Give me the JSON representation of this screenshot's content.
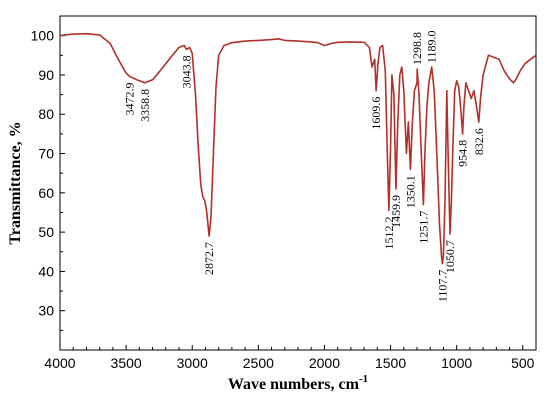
{
  "chart_data": {
    "type": "line",
    "title": "",
    "xlabel": "Wave numbers, cm",
    "xlabel_superscript": "-1",
    "ylabel": "Transmittance, %",
    "xlim": [
      4000,
      400
    ],
    "ylim": [
      20,
      105
    ],
    "x_reversed": true,
    "grid": false,
    "legend": "none",
    "x_ticks": [
      4000,
      3500,
      3000,
      2500,
      2000,
      1500,
      1000,
      500
    ],
    "y_ticks": [
      30,
      40,
      50,
      60,
      70,
      80,
      90,
      100
    ],
    "series": [
      {
        "color": "#b2302a",
        "points": [
          [
            4000,
            100.0
          ],
          [
            3900,
            100.4
          ],
          [
            3800,
            100.5
          ],
          [
            3700,
            100.2
          ],
          [
            3620,
            98.0
          ],
          [
            3560,
            94.0
          ],
          [
            3500,
            90.5
          ],
          [
            3472.9,
            89.6
          ],
          [
            3420,
            88.8
          ],
          [
            3358.8,
            88.0
          ],
          [
            3300,
            88.8
          ],
          [
            3220,
            92.0
          ],
          [
            3150,
            95.0
          ],
          [
            3100,
            97.0
          ],
          [
            3060,
            97.5
          ],
          [
            3043.8,
            96.5
          ],
          [
            3020,
            97.0
          ],
          [
            3000,
            95.5
          ],
          [
            2975,
            85.0
          ],
          [
            2955,
            72.0
          ],
          [
            2935,
            62.0
          ],
          [
            2920,
            59.0
          ],
          [
            2905,
            58.0
          ],
          [
            2890,
            55.0
          ],
          [
            2872.7,
            49.0
          ],
          [
            2858,
            54.0
          ],
          [
            2840,
            70.0
          ],
          [
            2820,
            87.0
          ],
          [
            2800,
            95.0
          ],
          [
            2760,
            97.5
          ],
          [
            2700,
            98.2
          ],
          [
            2600,
            98.6
          ],
          [
            2500,
            98.8
          ],
          [
            2400,
            99.0
          ],
          [
            2350,
            99.2
          ],
          [
            2300,
            98.8
          ],
          [
            2200,
            98.6
          ],
          [
            2100,
            98.4
          ],
          [
            2050,
            98.2
          ],
          [
            2000,
            97.5
          ],
          [
            1950,
            98.0
          ],
          [
            1900,
            98.3
          ],
          [
            1800,
            98.4
          ],
          [
            1700,
            98.3
          ],
          [
            1660,
            97.0
          ],
          [
            1640,
            92.0
          ],
          [
            1620,
            94.0
          ],
          [
            1609.6,
            86.0
          ],
          [
            1595,
            93.0
          ],
          [
            1580,
            97.0
          ],
          [
            1560,
            97.5
          ],
          [
            1540,
            91.0
          ],
          [
            1525,
            70.0
          ],
          [
            1512.2,
            55.5
          ],
          [
            1500,
            72.0
          ],
          [
            1490,
            90.0
          ],
          [
            1475,
            85.0
          ],
          [
            1459.9,
            61.0
          ],
          [
            1445,
            78.0
          ],
          [
            1430,
            90.0
          ],
          [
            1415,
            92.0
          ],
          [
            1400,
            86.0
          ],
          [
            1380,
            70.0
          ],
          [
            1365,
            78.0
          ],
          [
            1350.1,
            66.0
          ],
          [
            1335,
            78.0
          ],
          [
            1320,
            86.0
          ],
          [
            1300,
            88.0
          ],
          [
            1298.8,
            91.5
          ],
          [
            1285,
            85.0
          ],
          [
            1265,
            68.0
          ],
          [
            1251.7,
            57.0
          ],
          [
            1240,
            70.0
          ],
          [
            1225,
            82.0
          ],
          [
            1210,
            88.0
          ],
          [
            1189,
            92.0
          ],
          [
            1170,
            86.0
          ],
          [
            1150,
            70.0
          ],
          [
            1130,
            52.0
          ],
          [
            1115,
            44.0
          ],
          [
            1107.7,
            42.0
          ],
          [
            1100,
            44.0
          ],
          [
            1088,
            58.0
          ],
          [
            1075,
            86.0
          ],
          [
            1065,
            70.0
          ],
          [
            1050.7,
            49.5
          ],
          [
            1040,
            58.0
          ],
          [
            1030,
            70.0
          ],
          [
            1015,
            86.0
          ],
          [
            1000,
            88.5
          ],
          [
            985,
            87.0
          ],
          [
            970,
            82.0
          ],
          [
            954.8,
            75.0
          ],
          [
            945,
            82.0
          ],
          [
            930,
            88.0
          ],
          [
            910,
            86.0
          ],
          [
            890,
            84.0
          ],
          [
            870,
            86.0
          ],
          [
            850,
            82.0
          ],
          [
            832.6,
            78.0
          ],
          [
            820,
            84.0
          ],
          [
            800,
            90.0
          ],
          [
            760,
            95.0
          ],
          [
            720,
            94.5
          ],
          [
            680,
            94.0
          ],
          [
            640,
            91.0
          ],
          [
            600,
            89.0
          ],
          [
            570,
            88.0
          ],
          [
            550,
            89.0
          ],
          [
            520,
            91.0
          ],
          [
            480,
            93.0
          ],
          [
            440,
            94.0
          ],
          [
            400,
            95.0
          ]
        ]
      }
    ],
    "peak_labels": [
      {
        "text": "3472.9",
        "x": 3472.9,
        "y": 89.6
      },
      {
        "text": "3358.8",
        "x": 3358.8,
        "y": 88.0
      },
      {
        "text": "3043.8",
        "x": 3043.8,
        "y": 96.5
      },
      {
        "text": "2872.7",
        "x": 2872.7,
        "y": 49.0
      },
      {
        "text": "1609.6",
        "x": 1609.6,
        "y": 86.0
      },
      {
        "text": "1512.2",
        "x": 1512.2,
        "y": 55.5
      },
      {
        "text": "1459.9",
        "x": 1459.9,
        "y": 61.0
      },
      {
        "text": "1350.1",
        "x": 1350.1,
        "y": 66.0
      },
      {
        "text": "1298.8",
        "x": 1298.8,
        "y": 91.5
      },
      {
        "text": "1251.7",
        "x": 1251.7,
        "y": 57.0
      },
      {
        "text": "1189.0",
        "x": 1189.0,
        "y": 92.0
      },
      {
        "text": "1107.7",
        "x": 1107.7,
        "y": 42.0
      },
      {
        "text": "1050.7",
        "x": 1050.7,
        "y": 49.5
      },
      {
        "text": "954.8",
        "x": 954.8,
        "y": 75.0
      },
      {
        "text": "832.6",
        "x": 832.6,
        "y": 78.0
      }
    ]
  }
}
